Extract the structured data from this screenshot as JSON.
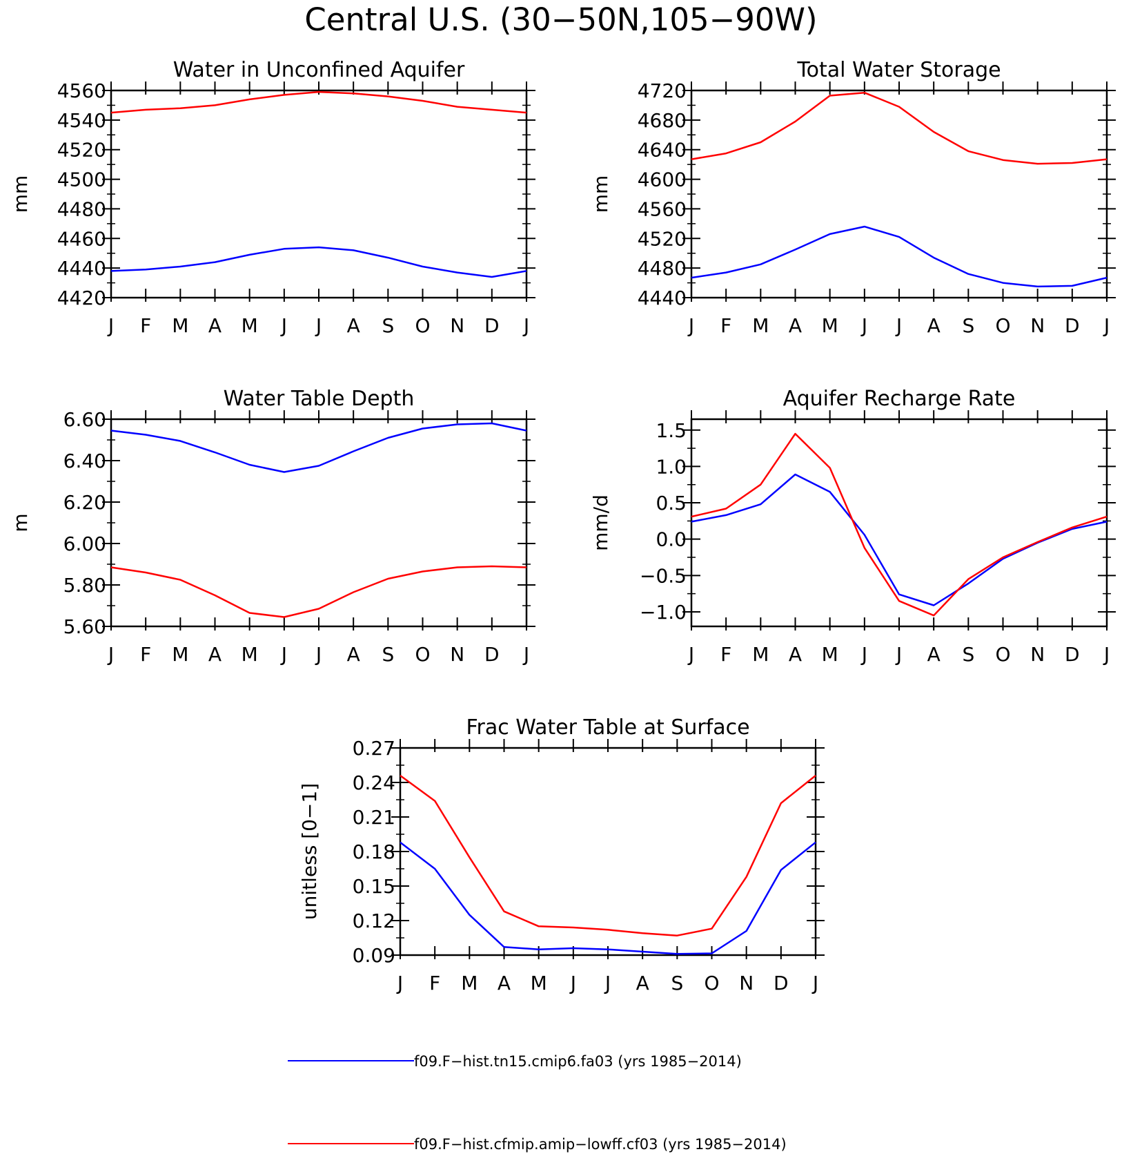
{
  "figure": {
    "title": "Central U.S. (30−50N,105−90W)"
  },
  "legend": [
    {
      "label": "f09.F−hist.tn15.cmip6.fa03 (yrs 1985−2014)",
      "color": "#0000ff"
    },
    {
      "label": "f09.F−hist.cfmip.amip−lowff.cf03 (yrs 1985−2014)",
      "color": "#ff0000"
    }
  ],
  "chart_data": [
    {
      "type": "line",
      "title": "Water in Unconfined Aquifer",
      "ylabel": "mm",
      "categories": [
        "J",
        "F",
        "M",
        "A",
        "M",
        "J",
        "J",
        "A",
        "S",
        "O",
        "N",
        "D",
        "J"
      ],
      "ylim": [
        4420,
        4560
      ],
      "yticks": [
        "4420",
        "4440",
        "4460",
        "4480",
        "4500",
        "4520",
        "4540",
        "4560"
      ],
      "series": [
        {
          "color": "#0000ff",
          "values": [
            4438,
            4439,
            4441,
            4444,
            4449,
            4453,
            4454,
            4452,
            4447,
            4441,
            4437,
            4434,
            4438
          ]
        },
        {
          "color": "#ff0000",
          "values": [
            4545,
            4547,
            4548,
            4550,
            4554,
            4557,
            4559,
            4558,
            4556,
            4553,
            4549,
            4547,
            4545
          ]
        }
      ]
    },
    {
      "type": "line",
      "title": "Total Water Storage",
      "ylabel": "mm",
      "categories": [
        "J",
        "F",
        "M",
        "A",
        "M",
        "J",
        "J",
        "A",
        "S",
        "O",
        "N",
        "D",
        "J"
      ],
      "ylim": [
        4440,
        4720
      ],
      "yticks": [
        "4440",
        "4480",
        "4520",
        "4560",
        "4600",
        "4640",
        "4680",
        "4720"
      ],
      "series": [
        {
          "color": "#0000ff",
          "values": [
            4467,
            4474,
            4485,
            4505,
            4526,
            4536,
            4522,
            4494,
            4472,
            4460,
            4455,
            4456,
            4467
          ]
        },
        {
          "color": "#ff0000",
          "values": [
            4627,
            4635,
            4650,
            4678,
            4713,
            4717,
            4698,
            4664,
            4638,
            4626,
            4621,
            4622,
            4627
          ]
        }
      ]
    },
    {
      "type": "line",
      "title": "Water Table Depth",
      "ylabel": "m",
      "categories": [
        "J",
        "F",
        "M",
        "A",
        "M",
        "J",
        "J",
        "A",
        "S",
        "O",
        "N",
        "D",
        "J"
      ],
      "ylim": [
        5.6,
        6.6
      ],
      "yticks": [
        "5.60",
        "5.80",
        "6.00",
        "6.20",
        "6.40",
        "6.60"
      ],
      "series": [
        {
          "color": "#0000ff",
          "values": [
            6.545,
            6.525,
            6.495,
            6.44,
            6.38,
            6.345,
            6.375,
            6.445,
            6.51,
            6.555,
            6.575,
            6.58,
            6.545
          ]
        },
        {
          "color": "#ff0000",
          "values": [
            5.885,
            5.86,
            5.825,
            5.75,
            5.665,
            5.645,
            5.685,
            5.765,
            5.83,
            5.865,
            5.885,
            5.89,
            5.885
          ]
        }
      ]
    },
    {
      "type": "line",
      "title": "Aquifer Recharge Rate",
      "ylabel": "mm/d",
      "categories": [
        "J",
        "F",
        "M",
        "A",
        "M",
        "J",
        "J",
        "A",
        "S",
        "O",
        "N",
        "D",
        "J"
      ],
      "ylim": [
        -1.2,
        1.65
      ],
      "yticks": [
        "−1.0",
        "−0.5",
        "0.0",
        "0.5",
        "1.0",
        "1.5"
      ],
      "ytick_values": [
        -1.0,
        -0.5,
        0.0,
        0.5,
        1.0,
        1.5
      ],
      "series": [
        {
          "color": "#0000ff",
          "values": [
            0.24,
            0.33,
            0.48,
            0.89,
            0.65,
            0.06,
            -0.76,
            -0.91,
            -0.61,
            -0.27,
            -0.05,
            0.14,
            0.24
          ]
        },
        {
          "color": "#ff0000",
          "values": [
            0.31,
            0.42,
            0.75,
            1.45,
            0.98,
            -0.12,
            -0.85,
            -1.05,
            -0.55,
            -0.25,
            -0.04,
            0.16,
            0.31
          ]
        }
      ]
    },
    {
      "type": "line",
      "title": "Frac Water Table at Surface",
      "ylabel": "unitless [0−1]",
      "categories": [
        "J",
        "F",
        "M",
        "A",
        "M",
        "J",
        "J",
        "A",
        "S",
        "O",
        "N",
        "D",
        "J"
      ],
      "ylim": [
        0.09,
        0.27
      ],
      "yticks": [
        "0.09",
        "0.12",
        "0.15",
        "0.18",
        "0.21",
        "0.24",
        "0.27"
      ],
      "series": [
        {
          "color": "#0000ff",
          "values": [
            0.188,
            0.165,
            0.125,
            0.097,
            0.095,
            0.096,
            0.095,
            0.093,
            0.091,
            0.0915,
            0.111,
            0.164,
            0.188
          ]
        },
        {
          "color": "#ff0000",
          "values": [
            0.246,
            0.224,
            0.175,
            0.128,
            0.115,
            0.114,
            0.112,
            0.109,
            0.107,
            0.113,
            0.158,
            0.222,
            0.246
          ]
        }
      ]
    }
  ]
}
